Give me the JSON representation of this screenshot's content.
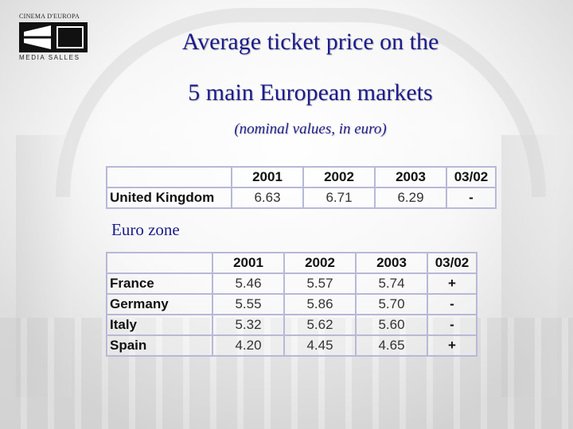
{
  "logo": {
    "top_text": "CINEMA D'EUROPA",
    "bottom_text": "MEDIA SALLES"
  },
  "title": {
    "line1": "Average ticket price on the",
    "line2": "5 main European markets",
    "subtitle": "(nominal values, in euro)"
  },
  "uk_table": {
    "columns": [
      "2001",
      "2002",
      "2003",
      "03/02"
    ],
    "rows": [
      {
        "country": "United Kingdom",
        "v2001": "6.63",
        "v2002": "6.71",
        "v2003": "6.29",
        "change": "-"
      }
    ]
  },
  "euro_zone": {
    "label": "Euro zone",
    "columns": [
      "2001",
      "2002",
      "2003",
      "03/02"
    ],
    "rows": [
      {
        "country": "France",
        "v2001": "5.46",
        "v2002": "5.57",
        "v2003": "5.74",
        "change": "+"
      },
      {
        "country": "Germany",
        "v2001": "5.55",
        "v2002": "5.86",
        "v2003": "5.70",
        "change": "-"
      },
      {
        "country": "Italy",
        "v2001": "5.32",
        "v2002": "5.62",
        "v2003": "5.60",
        "change": "-"
      },
      {
        "country": "Spain",
        "v2001": "4.20",
        "v2002": "4.45",
        "v2003": "4.65",
        "change": "+"
      }
    ]
  },
  "colors": {
    "title": "#1c1c8c",
    "table_border": "#b8b8d8"
  }
}
